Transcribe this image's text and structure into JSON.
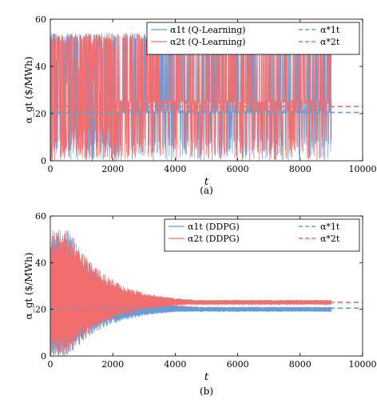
{
  "colors": {
    "agent1": "#6b9bd2",
    "agent2": "#f26d6d",
    "axis": "#000000",
    "legend_border": "#000000"
  },
  "chart_data": [
    {
      "type": "line",
      "caption": "(a)",
      "xlabel": "t",
      "ylabel": "α_gt ($/MWh)",
      "xlim": [
        0,
        10000
      ],
      "ylim": [
        0,
        60
      ],
      "xticks": [
        "0",
        "2000",
        "4000",
        "6000",
        "8000",
        "10000"
      ],
      "yticks": [
        "0",
        "20",
        "40",
        "60"
      ],
      "legend_position": "top-right",
      "series": [
        {
          "name": "α1t (Q-Learning)",
          "style": "solid",
          "color": "agent1",
          "t_end": 9000,
          "behavior": "Oscillates between 0 and 54 throughout; after ~2000 frequent spikes to ~54 and drops near 0; baseline near 21",
          "upper": 54,
          "lower": 0,
          "settle": 21
        },
        {
          "name": "α2t (Q-Learning)",
          "style": "solid",
          "color": "agent2",
          "t_end": 9000,
          "behavior": "Dense oscillation 0–54 until ~2200, then intermittent spikes; baseline near 25",
          "upper": 54,
          "lower": 0,
          "settle": 25
        },
        {
          "name": "α*1t",
          "style": "dashed",
          "color": "agent1",
          "value": 20.5
        },
        {
          "name": "α*2t",
          "style": "dashed",
          "color": "agent2",
          "value": 23
        }
      ]
    },
    {
      "type": "line",
      "caption": "(b)",
      "xlabel": "t",
      "ylabel": "α_gt ($/MWh)",
      "xlim": [
        0,
        10000
      ],
      "ylim": [
        0,
        60
      ],
      "xticks": [
        "0",
        "2000",
        "4000",
        "6000",
        "8000",
        "10000"
      ],
      "yticks": [
        "0",
        "20",
        "40",
        "60"
      ],
      "legend_position": "top-right",
      "series": [
        {
          "name": "α1t (DDPG)",
          "style": "solid",
          "color": "agent1",
          "t_end": 9000,
          "behavior": "Wide oscillation 0–54 narrowing to band 19–21 by ~5000",
          "upper": 54,
          "lower": 0,
          "settle": 20
        },
        {
          "name": "α2t (DDPG)",
          "style": "solid",
          "color": "agent2",
          "t_end": 9000,
          "behavior": "Wide oscillation 0–54 narrowing to band 22–24 by ~5000",
          "upper": 54,
          "lower": 0,
          "settle": 23
        },
        {
          "name": "α*1t",
          "style": "dashed",
          "color": "agent1",
          "value": 20.5
        },
        {
          "name": "α*2t",
          "style": "dashed",
          "color": "agent2",
          "value": 23
        }
      ]
    }
  ]
}
